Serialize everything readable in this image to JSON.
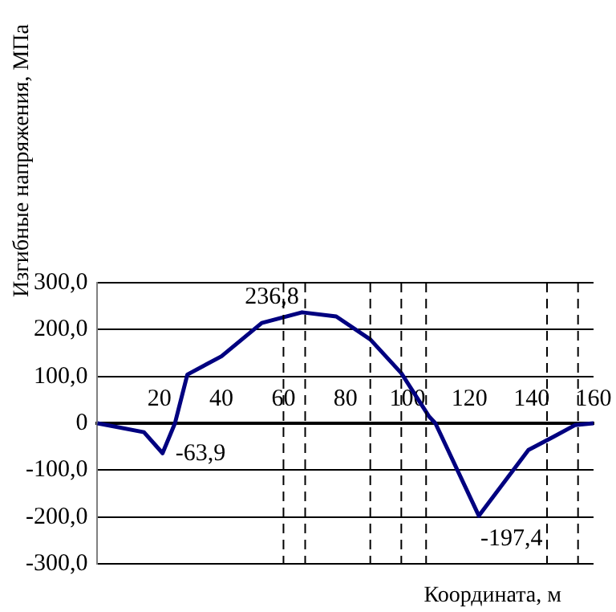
{
  "chart_data": {
    "type": "line",
    "xlabel": "Координата, м",
    "ylabel": "Изгибные напряжения, МПа",
    "x": [
      0,
      15,
      21,
      25,
      29,
      40,
      53,
      66,
      77,
      88,
      98,
      107,
      109,
      123,
      139,
      147,
      154,
      160
    ],
    "series": [
      {
        "color": "#000080",
        "values": [
          0,
          -19,
          -63.9,
          0,
          104,
          143,
          214,
          236.8,
          228,
          179,
          107,
          14,
          0,
          -197.4,
          -57,
          -29,
          -4,
          0
        ]
      }
    ],
    "xlim": [
      0,
      160
    ],
    "xticks": [
      20,
      40,
      60,
      80,
      100,
      120,
      140,
      160
    ],
    "ylim": [
      -300,
      300
    ],
    "yticks": [
      {
        "value": -300,
        "label": "-300,0"
      },
      {
        "value": -200,
        "label": "-200,0"
      },
      {
        "value": -100,
        "label": "-100,0"
      },
      0,
      {
        "value": 100,
        "label": "100,0"
      },
      {
        "value": 200,
        "label": "200,0"
      },
      {
        "value": 300,
        "label": "300,0"
      }
    ],
    "grid": "y",
    "legend": false,
    "marker": "none",
    "line_style": "solid",
    "ref_lines": [
      {
        "axis": "x",
        "value": 60,
        "line_style": "dashed",
        "color": "#000000"
      },
      {
        "axis": "x",
        "value": 67,
        "line_style": "dashed",
        "color": "#000000"
      },
      {
        "axis": "x",
        "value": 88,
        "line_style": "dashed",
        "color": "#000000"
      },
      {
        "axis": "x",
        "value": 98,
        "line_style": "dashed",
        "color": "#000000"
      },
      {
        "axis": "x",
        "value": 106,
        "line_style": "dashed",
        "color": "#000000"
      },
      {
        "axis": "x",
        "value": 145,
        "line_style": "dashed",
        "color": "#000000"
      },
      {
        "axis": "x",
        "value": 155,
        "line_style": "dashed",
        "color": "#000000"
      }
    ],
    "annotations": [
      {
        "text": "236,8",
        "x": 66,
        "y": 236.8
      },
      {
        "text": "-63,9",
        "x": 21,
        "y": -63.9
      },
      {
        "text": "-197,4",
        "x": 123,
        "y": -197.4
      }
    ]
  }
}
